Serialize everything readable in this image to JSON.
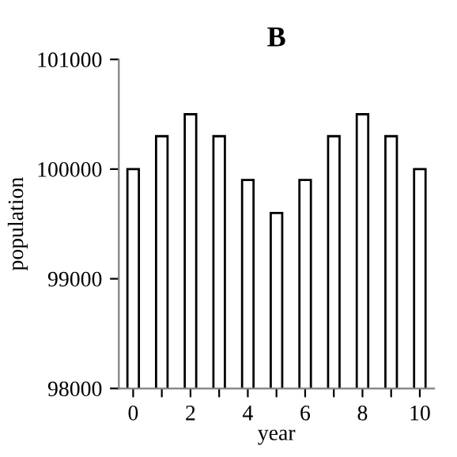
{
  "chart_data": {
    "type": "bar",
    "title": "B",
    "xlabel": "year",
    "ylabel": "population",
    "x": [
      0,
      1,
      2,
      3,
      4,
      5,
      6,
      7,
      8,
      9,
      10
    ],
    "values": [
      100000,
      100300,
      100500,
      100300,
      99900,
      99600,
      99900,
      100300,
      100500,
      100300,
      100000
    ],
    "color": "#ffffff",
    "xlim": [
      -0.5,
      10.5
    ],
    "xticks": [
      0,
      {
        "value": 1,
        "label": null
      },
      2,
      {
        "value": 3,
        "label": null
      },
      4,
      {
        "value": 5,
        "label": null
      },
      6,
      {
        "value": 7,
        "label": null
      },
      8,
      {
        "value": 9,
        "label": null
      },
      10
    ],
    "ylim": [
      98000,
      101000
    ],
    "yticks": [
      98000,
      99000,
      100000,
      101000
    ],
    "grid": false,
    "legend": false
  }
}
